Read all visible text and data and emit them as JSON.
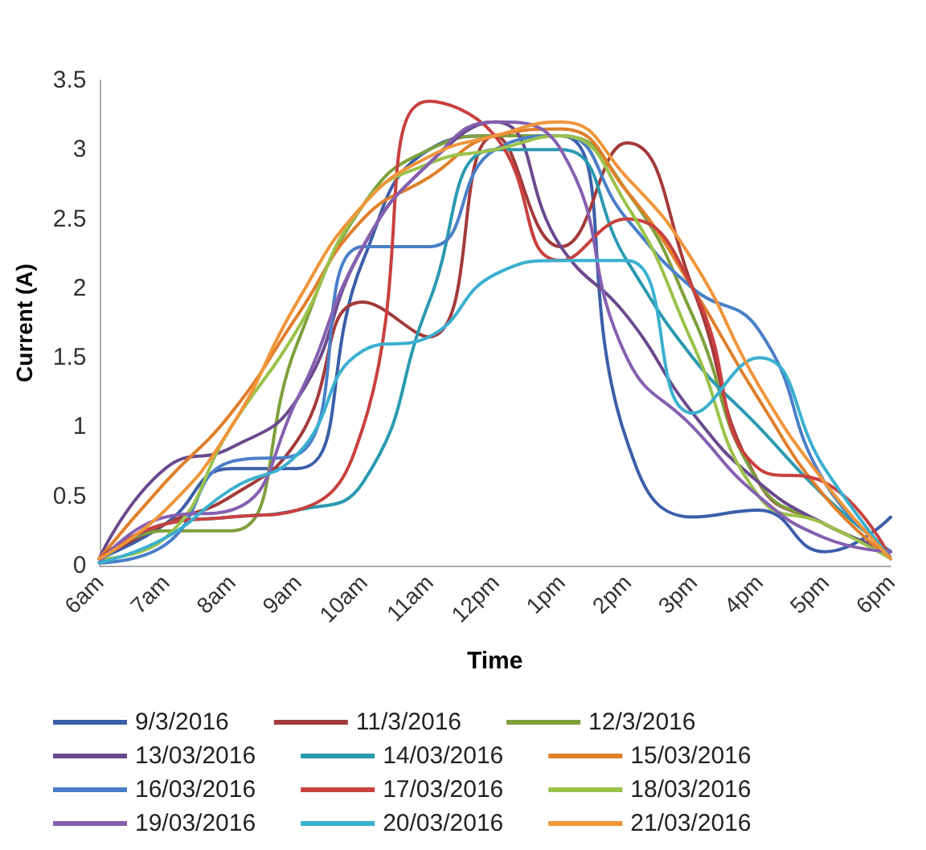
{
  "chart_data": {
    "type": "line",
    "xlabel": "Time",
    "ylabel": "Current (A)",
    "categories": [
      "6am",
      "7am",
      "8am",
      "9am",
      "10am",
      "11am",
      "12pm",
      "1pm",
      "2pm",
      "3pm",
      "4pm",
      "5pm",
      "6pm"
    ],
    "ylim": [
      0,
      3.5
    ],
    "yticks": [
      0,
      0.5,
      1,
      1.5,
      2,
      2.5,
      3,
      3.5
    ],
    "grid": false,
    "legend": "bottom",
    "marker": "none",
    "line_style": "solid",
    "series": [
      {
        "name": "9/3/2016",
        "color": "#3b5ea8",
        "values": [
          0.05,
          0.3,
          0.7,
          0.7,
          2.2,
          3.0,
          3.1,
          3.1,
          0.9,
          0.35,
          0.4,
          0.1,
          0.35
        ]
      },
      {
        "name": "11/3/2016",
        "color": "#a33a3a",
        "values": [
          0.05,
          0.3,
          0.5,
          0.9,
          1.9,
          1.65,
          3.1,
          2.3,
          3.05,
          2.0,
          0.6,
          0.3,
          0.1
        ]
      },
      {
        "name": "12/3/2016",
        "color": "#7ea03c",
        "values": [
          0.05,
          0.25,
          0.25,
          1.6,
          2.6,
          3.0,
          3.1,
          3.1,
          2.7,
          1.8,
          0.6,
          0.3,
          0.1
        ]
      },
      {
        "name": "13/03/2016",
        "color": "#6a4a8c",
        "values": [
          0.05,
          0.7,
          0.85,
          1.2,
          2.3,
          2.9,
          3.2,
          2.3,
          1.8,
          1.1,
          0.6,
          0.3,
          0.1
        ]
      },
      {
        "name": "14/03/2016",
        "color": "#2a9ab0",
        "values": [
          0.02,
          0.3,
          0.35,
          0.4,
          0.6,
          1.9,
          3.0,
          3.0,
          2.2,
          1.5,
          1.0,
          0.5,
          0.1
        ]
      },
      {
        "name": "15/03/2016",
        "color": "#e07f2a",
        "values": [
          0.05,
          0.6,
          1.1,
          1.8,
          2.5,
          2.8,
          3.1,
          3.15,
          2.7,
          2.0,
          1.2,
          0.5,
          0.05
        ]
      },
      {
        "name": "16/03/2016",
        "color": "#4a7fc8",
        "values": [
          0.02,
          0.15,
          0.75,
          0.8,
          2.3,
          2.3,
          3.0,
          3.1,
          2.5,
          2.0,
          1.7,
          0.6,
          0.1
        ]
      },
      {
        "name": "17/03/2016",
        "color": "#c9403f",
        "values": [
          0.05,
          0.3,
          0.35,
          0.4,
          1.0,
          3.35,
          3.1,
          2.2,
          2.5,
          2.0,
          0.7,
          0.6,
          0.05
        ]
      },
      {
        "name": "18/03/2016",
        "color": "#9bc24a",
        "values": [
          0.05,
          0.2,
          1.0,
          1.7,
          2.6,
          2.9,
          3.0,
          3.1,
          2.6,
          1.6,
          0.5,
          0.3,
          0.05
        ]
      },
      {
        "name": "19/03/2016",
        "color": "#8560b0",
        "values": [
          0.02,
          0.35,
          0.4,
          1.2,
          2.3,
          2.9,
          3.2,
          3.0,
          1.5,
          1.0,
          0.5,
          0.2,
          0.1
        ]
      },
      {
        "name": "20/03/2016",
        "color": "#3bb0cf",
        "values": [
          0.02,
          0.2,
          0.55,
          0.8,
          1.55,
          1.65,
          2.1,
          2.2,
          2.2,
          1.1,
          1.5,
          0.7,
          0.05
        ]
      },
      {
        "name": "21/03/2016",
        "color": "#f0953a",
        "values": [
          0.05,
          0.4,
          1.0,
          1.9,
          2.6,
          2.95,
          3.1,
          3.2,
          2.8,
          2.2,
          1.3,
          0.6,
          0.05
        ]
      }
    ]
  }
}
